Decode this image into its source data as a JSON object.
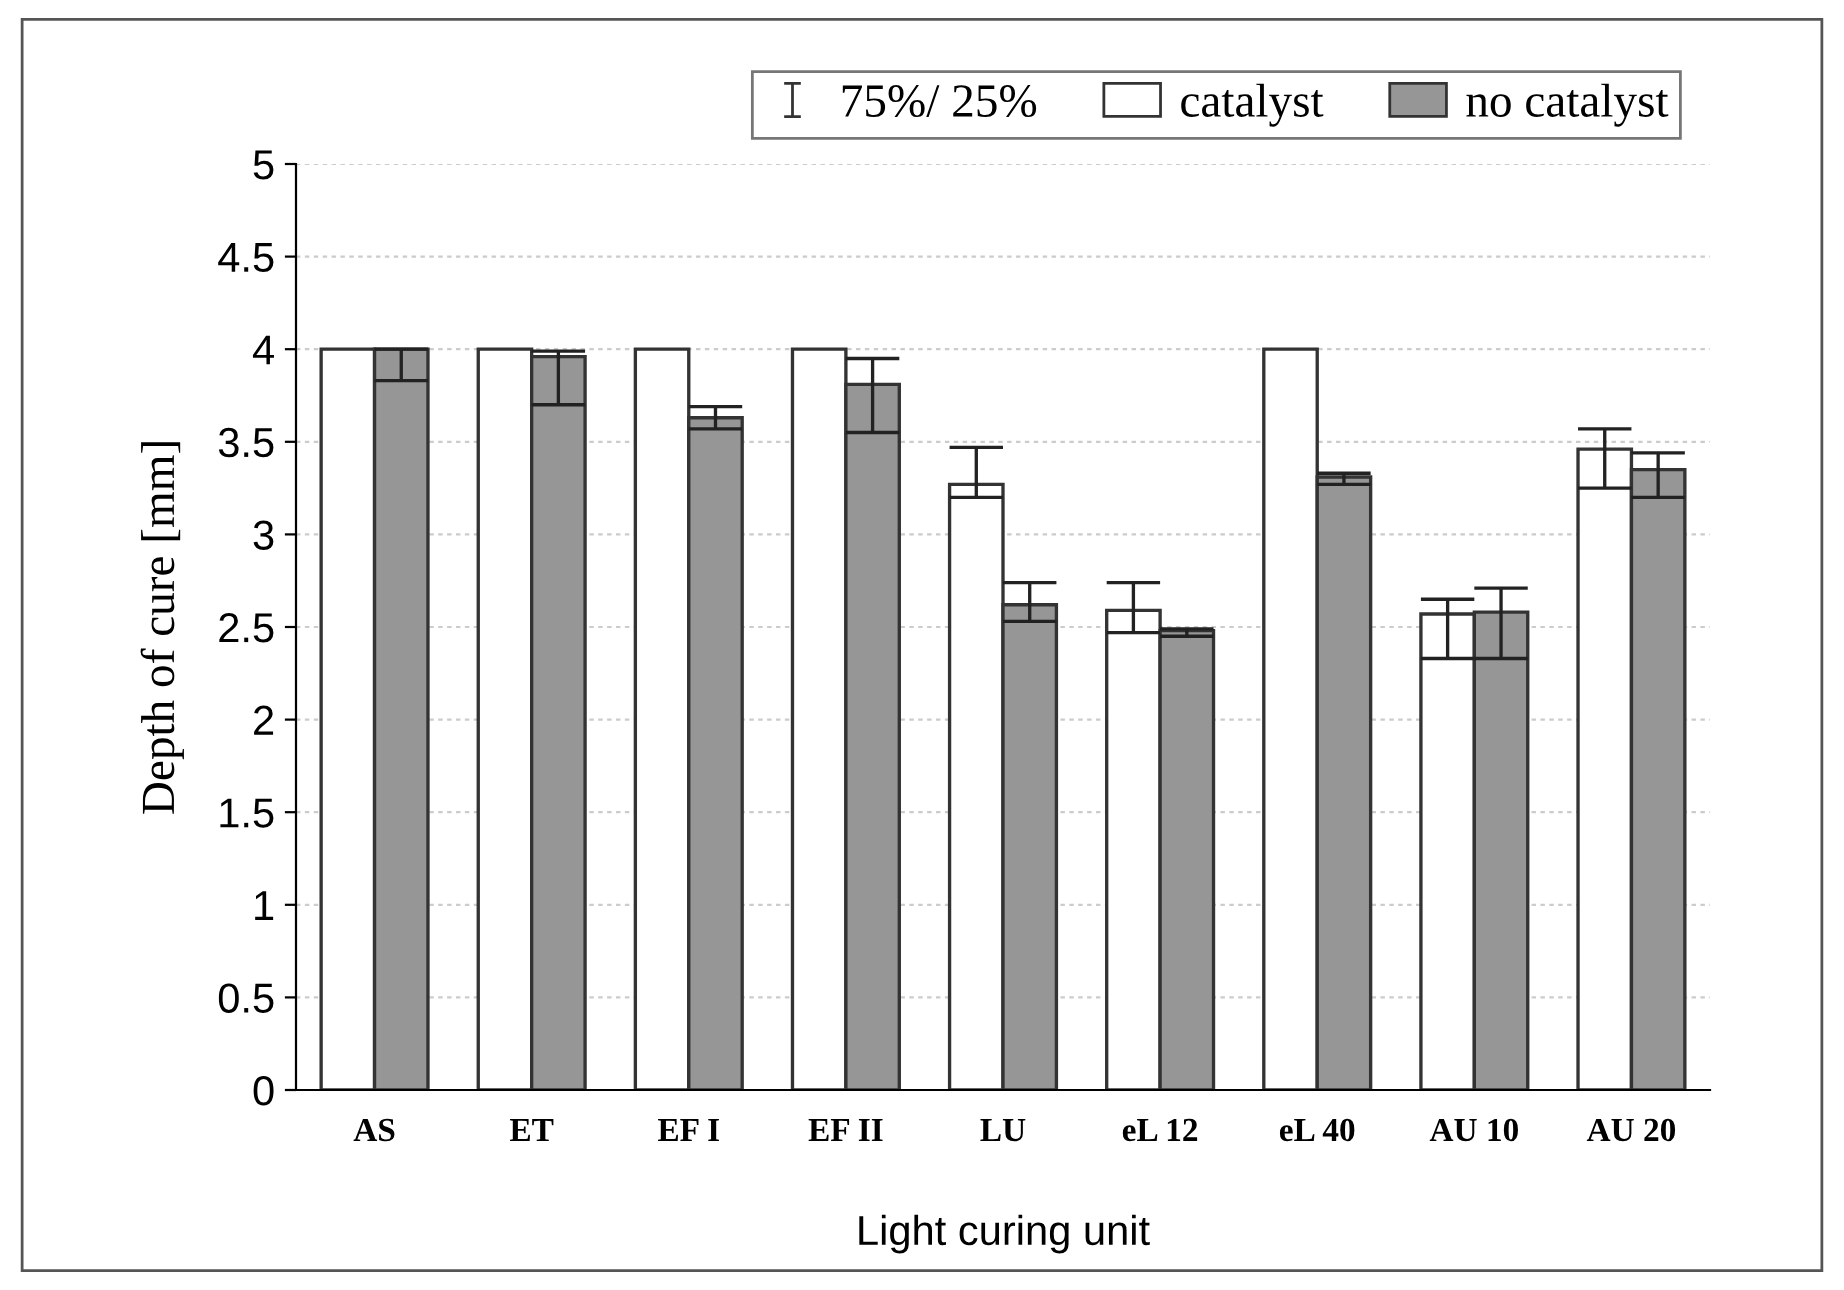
{
  "chart_data": {
    "type": "bar",
    "xlabel": "Light curing unit",
    "ylabel": "Depth of cure [mm]",
    "categories": [
      "AS",
      "ET",
      "EF I",
      "EF II",
      "LU",
      "eL 12",
      "eL 40",
      "AU 10",
      "AU 20"
    ],
    "series": [
      {
        "name": "catalyst",
        "color": "#ffffff",
        "values": [
          4,
          4,
          4,
          4,
          3.27,
          2.59,
          4,
          2.57,
          3.46
        ],
        "errors": [
          null,
          null,
          null,
          null,
          [
            3.2,
            3.47
          ],
          [
            2.47,
            2.74
          ],
          null,
          [
            2.33,
            2.65
          ],
          [
            3.25,
            3.57
          ]
        ]
      },
      {
        "name": "no catalyst",
        "color": "#969696",
        "values": [
          4,
          3.96,
          3.63,
          3.81,
          2.62,
          2.48,
          3.31,
          2.58,
          3.35
        ],
        "errors": [
          [
            3.83,
            4
          ],
          [
            3.7,
            3.99
          ],
          [
            3.57,
            3.69
          ],
          [
            3.55,
            3.95
          ],
          [
            2.53,
            2.74
          ],
          [
            2.45,
            2.49
          ],
          [
            3.27,
            3.33
          ],
          [
            2.33,
            2.71
          ],
          [
            3.2,
            3.44
          ]
        ]
      }
    ],
    "annotations": [
      "75%/ 25%"
    ],
    "ylim": [
      0,
      5
    ],
    "yticks": [
      0,
      0.5,
      1,
      1.5,
      2,
      2.5,
      3,
      3.5,
      4,
      4.5,
      5
    ],
    "grid": "y",
    "legend": "top right"
  }
}
